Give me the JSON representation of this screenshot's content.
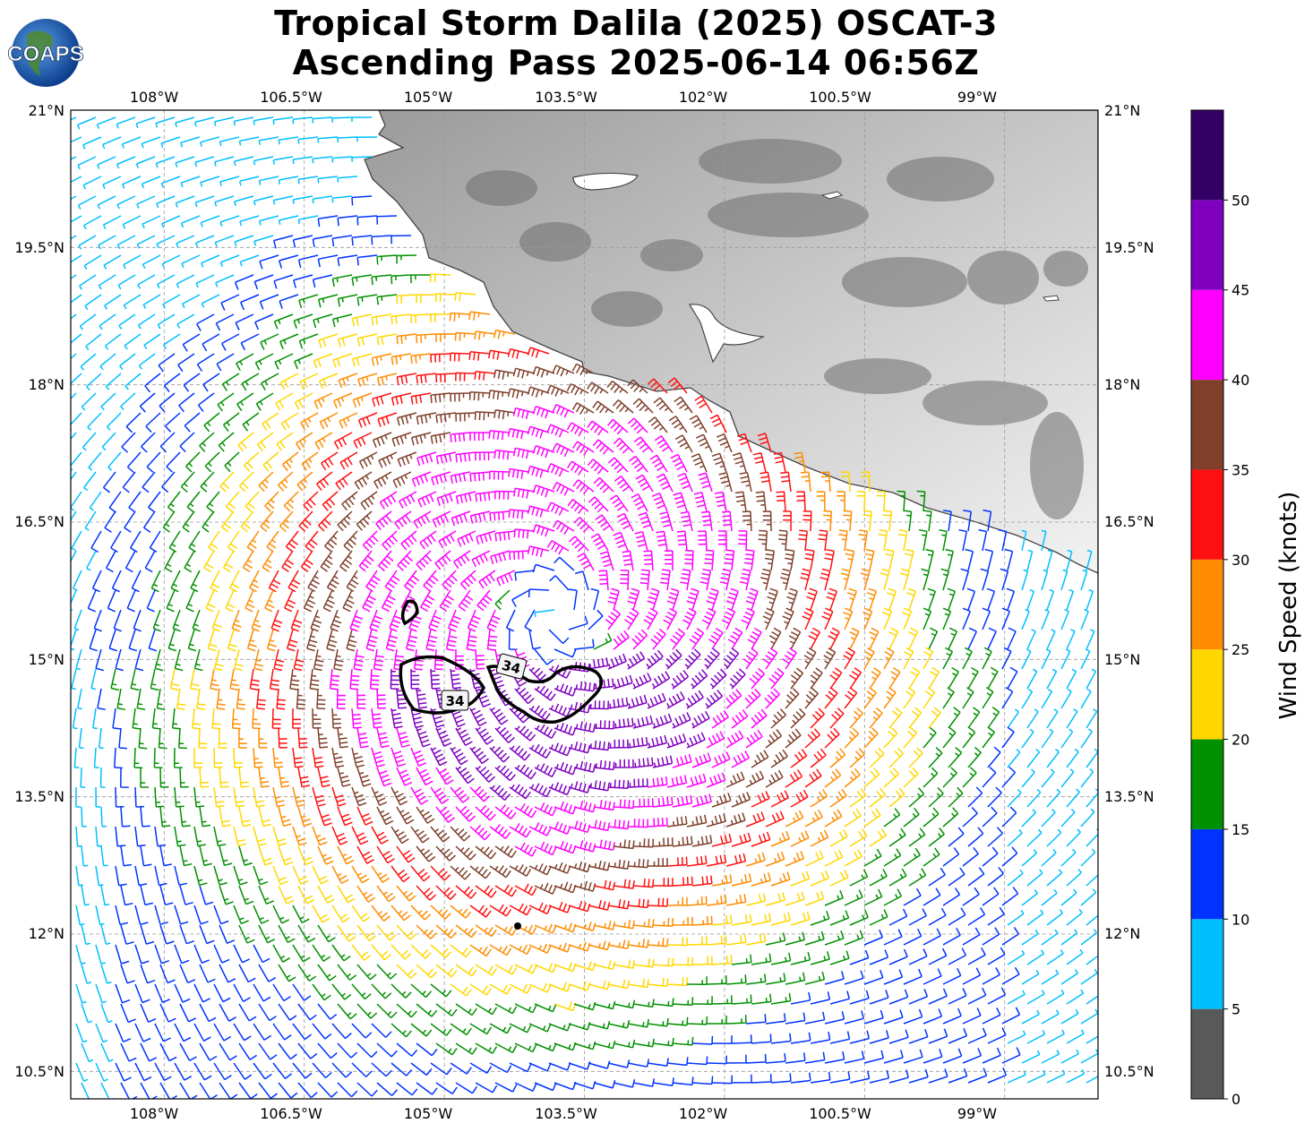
{
  "title": {
    "line1": "Tropical Storm Dalila (2025) OSCAT-3",
    "line2": "Ascending Pass 2025-06-14 06:56Z"
  },
  "logo": {
    "text": "COAPS",
    "icon": "globe-icon"
  },
  "map": {
    "lon_range": [
      -109.0,
      -98.0
    ],
    "lat_range": [
      10.2,
      21.0
    ],
    "basemap": "grayscale-topography",
    "gridlines": true,
    "storm_center": {
      "lat": 15.5,
      "lon": -103.8
    }
  },
  "axes": {
    "lon_ticks": [
      "108°W",
      "106.5°W",
      "105°W",
      "103.5°W",
      "102°W",
      "100.5°W",
      "99°W"
    ],
    "lat_ticks": [
      "21°N",
      "19.5°N",
      "18°N",
      "16.5°N",
      "15°N",
      "13.5°N",
      "12°N",
      "10.5°N"
    ]
  },
  "contours": {
    "level_34_labels": [
      "34",
      "34"
    ]
  },
  "colorbar": {
    "label": "Wind Speed (knots)",
    "ticks": [
      "0",
      "5",
      "10",
      "15",
      "20",
      "25",
      "30",
      "35",
      "40",
      "45",
      "50"
    ],
    "bins": [
      {
        "min": 0,
        "max": 5,
        "color": "#595959"
      },
      {
        "min": 5,
        "max": 10,
        "color": "#00bfff"
      },
      {
        "min": 10,
        "max": 15,
        "color": "#0033ff"
      },
      {
        "min": 15,
        "max": 20,
        "color": "#009000"
      },
      {
        "min": 20,
        "max": 25,
        "color": "#ffd700"
      },
      {
        "min": 25,
        "max": 30,
        "color": "#ff8c00"
      },
      {
        "min": 30,
        "max": 35,
        "color": "#ff1010"
      },
      {
        "min": 35,
        "max": 40,
        "color": "#7f3f2a"
      },
      {
        "min": 40,
        "max": 45,
        "color": "#ff00ff"
      },
      {
        "min": 45,
        "max": 50,
        "color": "#8000c0"
      },
      {
        "min": 50,
        "max": 55,
        "color": "#330066"
      }
    ]
  }
}
